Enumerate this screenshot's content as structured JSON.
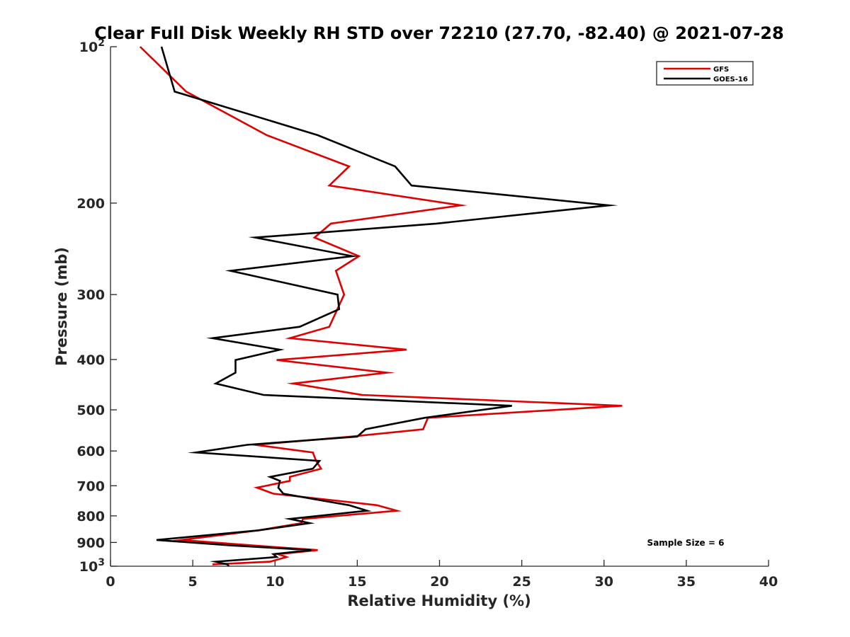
{
  "chart_data": {
    "type": "line",
    "title": "Clear Full Disk Weekly RH STD over 72210 (27.70, -82.40) @ 2021-07-28",
    "xlabel": "Relative Humidity (%)",
    "ylabel": "Pressure (mb)",
    "xlim": [
      0,
      40
    ],
    "ylim": [
      100,
      1000
    ],
    "y_scale": "log",
    "y_reversed": true,
    "grid": false,
    "legend_position": "top-right",
    "x_ticks": [
      "0",
      "5",
      "10",
      "15",
      "20",
      "25",
      "30",
      "35",
      "40"
    ],
    "y_ticks": [
      {
        "value": 100,
        "label": "10",
        "sup": "2"
      },
      {
        "value": 200,
        "label": "200",
        "sup": ""
      },
      {
        "value": 300,
        "label": "300",
        "sup": ""
      },
      {
        "value": 400,
        "label": "400",
        "sup": ""
      },
      {
        "value": 500,
        "label": "500",
        "sup": ""
      },
      {
        "value": 600,
        "label": "600",
        "sup": ""
      },
      {
        "value": 700,
        "label": "700",
        "sup": ""
      },
      {
        "value": 800,
        "label": "800",
        "sup": ""
      },
      {
        "value": 900,
        "label": "900",
        "sup": ""
      },
      {
        "value": 1000,
        "label": "10",
        "sup": "3"
      }
    ],
    "annotation": "Sample Size = 6",
    "series": [
      {
        "name": "GFS",
        "color": "#e00000",
        "points": [
          [
            1.8,
            100
          ],
          [
            4.6,
            122
          ],
          [
            9.5,
            148
          ],
          [
            14.5,
            170
          ],
          [
            13.3,
            185
          ],
          [
            21.3,
            202
          ],
          [
            13.4,
            219
          ],
          [
            12.4,
            233
          ],
          [
            15.1,
            253
          ],
          [
            13.7,
            270
          ],
          [
            14.2,
            300
          ],
          [
            13.3,
            346
          ],
          [
            10.9,
            364
          ],
          [
            18.0,
            383
          ],
          [
            10.1,
            401
          ],
          [
            16.8,
            424
          ],
          [
            11.1,
            445
          ],
          [
            15.3,
            468
          ],
          [
            31.1,
            491
          ],
          [
            19.3,
            518
          ],
          [
            19.0,
            545
          ],
          [
            14.6,
            563
          ],
          [
            8.8,
            584
          ],
          [
            12.3,
            604
          ],
          [
            12.5,
            627
          ],
          [
            12.8,
            649
          ],
          [
            10.9,
            673
          ],
          [
            10.9,
            685
          ],
          [
            8.9,
            706
          ],
          [
            9.9,
            725
          ],
          [
            16.2,
            763
          ],
          [
            17.4,
            782
          ],
          [
            11.7,
            811
          ],
          [
            11.6,
            826
          ],
          [
            9.0,
            853
          ],
          [
            4.3,
            890
          ],
          [
            8.6,
            912
          ],
          [
            12.6,
            931
          ],
          [
            10.2,
            948
          ],
          [
            10.7,
            960
          ],
          [
            9.7,
            980
          ],
          [
            6.2,
            992
          ]
        ]
      },
      {
        "name": "GOES-16",
        "color": "#000000",
        "points": [
          [
            3.1,
            100
          ],
          [
            3.9,
            122
          ],
          [
            12.6,
            148
          ],
          [
            17.3,
            170
          ],
          [
            18.3,
            185
          ],
          [
            30.3,
            202
          ],
          [
            19.8,
            219
          ],
          [
            8.8,
            233
          ],
          [
            14.7,
            253
          ],
          [
            7.3,
            270
          ],
          [
            13.8,
            300
          ],
          [
            13.9,
            320
          ],
          [
            11.5,
            346
          ],
          [
            6.2,
            364
          ],
          [
            10.3,
            383
          ],
          [
            7.6,
            401
          ],
          [
            7.6,
            424
          ],
          [
            6.4,
            445
          ],
          [
            9.3,
            468
          ],
          [
            24.4,
            491
          ],
          [
            19.1,
            518
          ],
          [
            15.5,
            545
          ],
          [
            15.0,
            563
          ],
          [
            8.3,
            584
          ],
          [
            5.2,
            604
          ],
          [
            12.7,
            627
          ],
          [
            12.3,
            649
          ],
          [
            9.7,
            673
          ],
          [
            10.3,
            685
          ],
          [
            10.2,
            706
          ],
          [
            10.5,
            725
          ],
          [
            14.5,
            763
          ],
          [
            15.6,
            782
          ],
          [
            10.9,
            811
          ],
          [
            12.1,
            826
          ],
          [
            9.0,
            853
          ],
          [
            2.8,
            890
          ],
          [
            7.3,
            912
          ],
          [
            12.2,
            931
          ],
          [
            9.9,
            948
          ],
          [
            10.1,
            960
          ],
          [
            6.4,
            980
          ],
          [
            7.1,
            992
          ],
          [
            7.2,
            1000
          ]
        ]
      }
    ]
  }
}
